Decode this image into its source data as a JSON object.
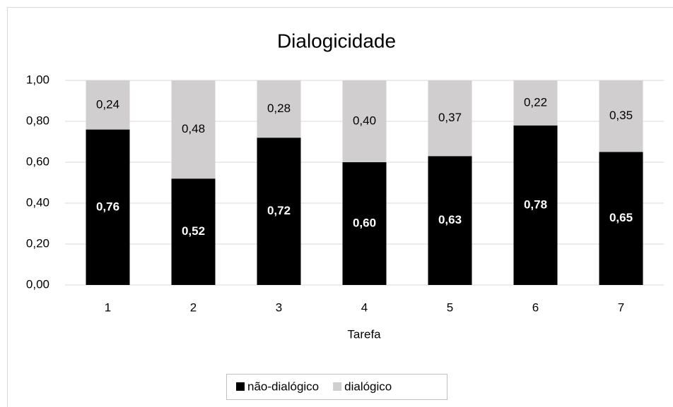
{
  "chart_data": {
    "type": "stacked_bar",
    "title": "Dialogicidade",
    "x_label": "Tarefa",
    "categories": [
      "1",
      "2",
      "3",
      "4",
      "5",
      "6",
      "7"
    ],
    "series": [
      {
        "name": "não-dialógico",
        "color": "#000000",
        "values": [
          0.76,
          0.52,
          0.72,
          0.6,
          0.63,
          0.78,
          0.65
        ],
        "value_labels": [
          "0,76",
          "0,52",
          "0,72",
          "0,60",
          "0,63",
          "0,78",
          "0,65"
        ]
      },
      {
        "name": "dialógico",
        "color": "#d0cece",
        "values": [
          0.24,
          0.48,
          0.28,
          0.4,
          0.37,
          0.22,
          0.35
        ],
        "value_labels": [
          "0,24",
          "0,48",
          "0,28",
          "0,40",
          "0,37",
          "0,22",
          "0,35"
        ]
      }
    ],
    "ylim": [
      0,
      1
    ],
    "yticks": [
      {
        "value": 0,
        "label": "0,00"
      },
      {
        "value": 0.2,
        "label": "0,20"
      },
      {
        "value": 0.4,
        "label": "0,40"
      },
      {
        "value": 0.6,
        "label": "0,60"
      },
      {
        "value": 0.8,
        "label": "0,80"
      },
      {
        "value": 1,
        "label": "1,00"
      }
    ],
    "grid": true,
    "legend": "bottom"
  }
}
